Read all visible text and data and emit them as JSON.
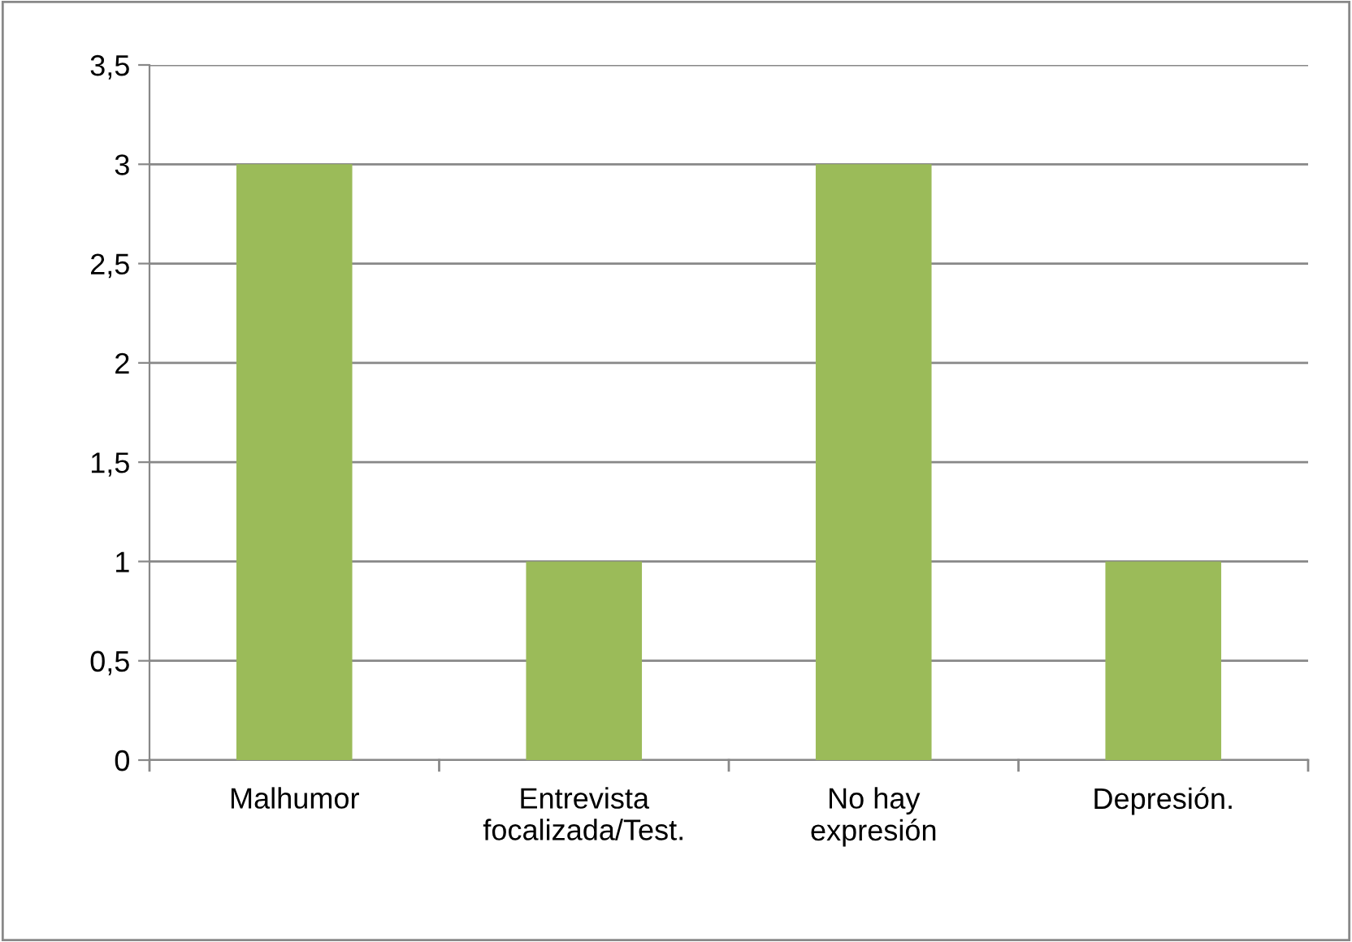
{
  "chart_data": {
    "type": "bar",
    "categories": [
      "Malhumor",
      "Entrevista\nfocalizada/Test.",
      "No hay\nexpresión",
      "Depresión."
    ],
    "values": [
      3,
      1,
      3,
      1
    ],
    "color": "#9bbb59",
    "ylim": [
      0,
      3.5
    ],
    "yticks": [
      0,
      {
        "value": 0.5,
        "label": "0,5"
      },
      1,
      {
        "value": 1.5,
        "label": "1,5"
      },
      2,
      {
        "value": 2.5,
        "label": "2,5"
      },
      3,
      {
        "value": 3.5,
        "label": "3,5"
      }
    ],
    "grid": "y",
    "legend": false
  }
}
